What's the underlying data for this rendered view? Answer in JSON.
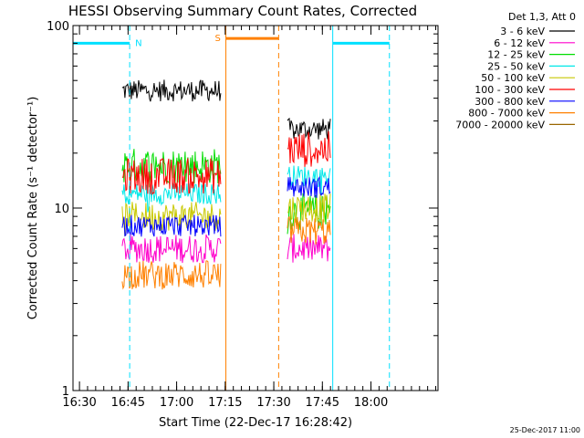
{
  "chart_data": {
    "type": "line",
    "title": "HESSI Observing Summary Count Rates, Corrected",
    "xlabel": "Start Time (22-Dec-17 16:28:42)",
    "ylabel": "Corrected Count Rate (s⁻¹ detector⁻¹)",
    "y_scale": "log",
    "ylim": [
      1,
      100
    ],
    "x_unit": "minutes after 16:28:42",
    "xlim": [
      -0.7,
      112
    ],
    "x_tick_labels": [
      "16:30",
      "16:45",
      "17:00",
      "17:15",
      "17:30",
      "17:45",
      "18:00"
    ],
    "x_tick_minutes": [
      1.3,
      16.3,
      31.3,
      46.3,
      61.3,
      76.3,
      91.3
    ],
    "y_tick_labels": [
      "1",
      "10",
      "100"
    ],
    "legend_title": "Det 1,3, Att 0",
    "legend_position": "top-right, outside plot",
    "series": [
      {
        "name": "3 - 6 keV",
        "color": "#000000",
        "segments": [
          {
            "x": [
              14.5,
              45.0
            ],
            "y": 44
          },
          {
            "x": [
              65.5,
              79.0
            ],
            "y": 27
          }
        ]
      },
      {
        "name": "6 - 12 keV",
        "color": "#ff00cc",
        "segments": [
          {
            "x": [
              14.5,
              45.0
            ],
            "y": 6.0
          },
          {
            "x": [
              65.5,
              79.0
            ],
            "y": 6.0
          }
        ]
      },
      {
        "name": "12 - 25 keV",
        "color": "#00dd00",
        "segments": [
          {
            "x": [
              14.5,
              45.0
            ],
            "y": 17
          },
          {
            "x": [
              65.5,
              79.0
            ],
            "y": 9.5
          }
        ]
      },
      {
        "name": "25 - 50 keV",
        "color": "#00e8e8",
        "segments": [
          {
            "x": [
              14.5,
              45.0
            ],
            "y": 12
          },
          {
            "x": [
              65.5,
              79.0
            ],
            "y": 15
          }
        ]
      },
      {
        "name": "50 - 100 keV",
        "color": "#c8c800",
        "segments": [
          {
            "x": [
              14.5,
              45.0
            ],
            "y": 9.0
          },
          {
            "x": [
              65.5,
              79.0
            ],
            "y": 10
          }
        ]
      },
      {
        "name": "100 - 300 keV",
        "color": "#ff0000",
        "segments": [
          {
            "x": [
              14.5,
              45.0
            ],
            "y": 15
          },
          {
            "x": [
              65.5,
              79.0
            ],
            "y": 21
          }
        ]
      },
      {
        "name": "300 - 800 keV",
        "color": "#0000ff",
        "segments": [
          {
            "x": [
              14.5,
              45.0
            ],
            "y": 8.0
          },
          {
            "x": [
              65.5,
              79.0
            ],
            "y": 13
          }
        ]
      },
      {
        "name": "800 - 7000 keV",
        "color": "#ff8000",
        "segments": [
          {
            "x": [
              14.5,
              45.0
            ],
            "y": 4.3
          },
          {
            "x": [
              65.5,
              79.0
            ],
            "y": 7.5
          }
        ]
      },
      {
        "name": "7000 - 20000 keV",
        "color": "#996600",
        "segments": []
      }
    ],
    "annotations": [
      {
        "label": "N",
        "color": "#00e0ff",
        "y": 80,
        "bar": [
          -0.7,
          16.8
        ],
        "solid_x": -0.7,
        "dashed_x": 16.8,
        "extra_bar": [
          79.5,
          97.0
        ],
        "extra_solid_x": 79.5,
        "extra_dashed_x": 97.0
      },
      {
        "label": "S",
        "color": "#ff8000",
        "y": 85,
        "bar": [
          46.5,
          62.8
        ],
        "solid_x": 46.5,
        "dashed_x": 62.8
      }
    ],
    "grid": false
  },
  "footer": {
    "timestamp": "25-Dec-2017 11:00"
  },
  "colors": {
    "axes": "#000000",
    "background": "#ffffff"
  }
}
